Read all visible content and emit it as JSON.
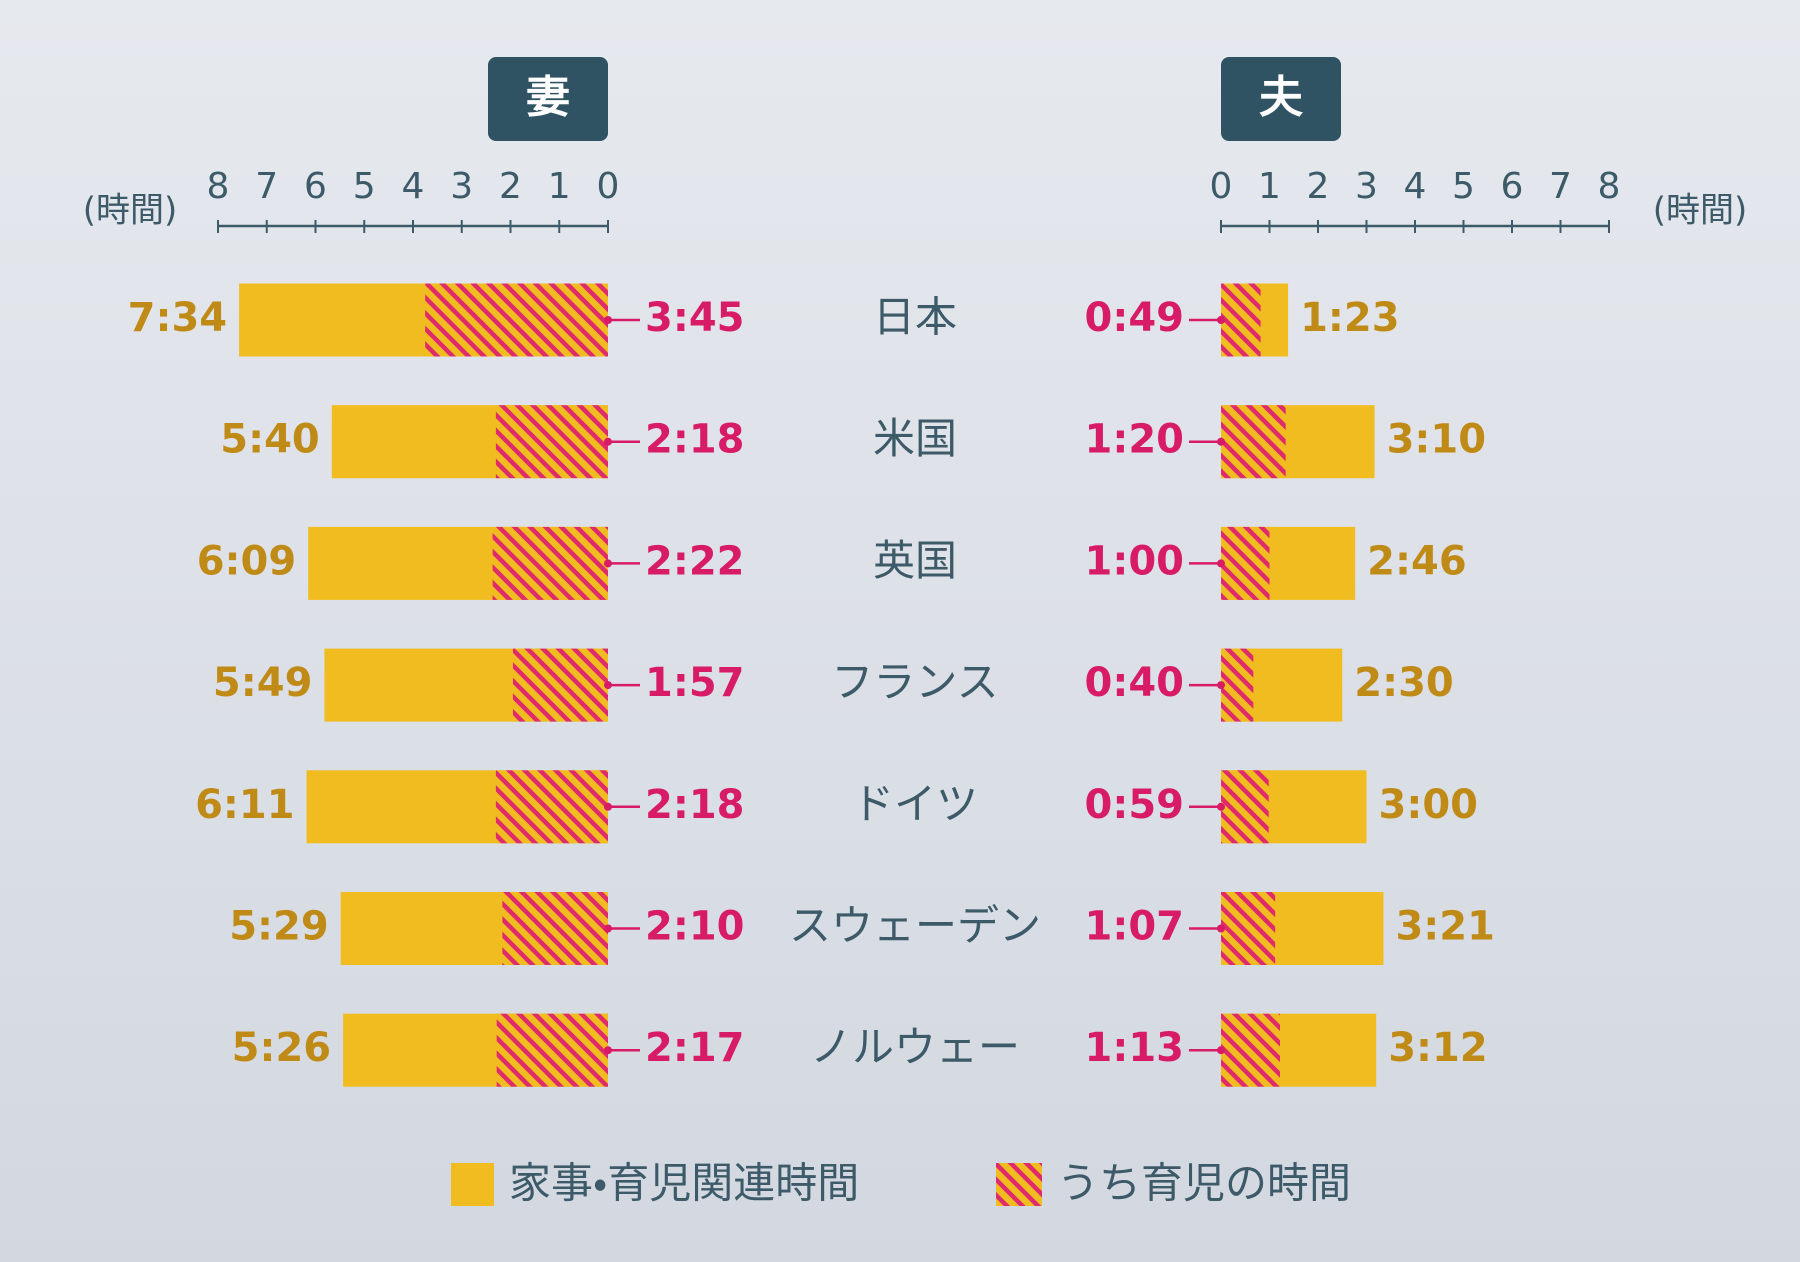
{
  "chart_data": {
    "type": "butterfly",
    "categories": [
      "日本",
      "米国",
      "英国",
      "フランス",
      "ドイツ",
      "スウェーデン",
      "ノルウェー"
    ],
    "panels": [
      {
        "title": "妻",
        "xlabel": "(時間)",
        "direction": "left",
        "xlim": [
          0,
          8
        ],
        "xticks": [
          0,
          1,
          2,
          3,
          4,
          5,
          6,
          7,
          8
        ],
        "series": [
          {
            "name": "家事・育児関連時間",
            "color": "#f1bc1f",
            "label_color": "#c08a17",
            "values": [
              7.5667,
              5.6667,
              6.15,
              5.8167,
              6.1833,
              5.4833,
              5.4333
            ],
            "value_labels": [
              "7:34",
              "5:40",
              "6:09",
              "5:49",
              "6:11",
              "5:29",
              "5:26"
            ]
          },
          {
            "name": "うち育児の時間",
            "color": "#df2a6c",
            "label_color": "#d81b66",
            "values": [
              3.75,
              2.3,
              2.3667,
              1.95,
              2.3,
              2.1667,
              2.2833
            ],
            "value_labels": [
              "3:45",
              "2:18",
              "2:22",
              "1:57",
              "2:18",
              "2:10",
              "2:17"
            ]
          }
        ]
      },
      {
        "title": "夫",
        "xlabel": "(時間)",
        "direction": "right",
        "xlim": [
          0,
          8
        ],
        "xticks": [
          0,
          1,
          2,
          3,
          4,
          5,
          6,
          7,
          8
        ],
        "series": [
          {
            "name": "家事・育児関連時間",
            "color": "#f1bc1f",
            "label_color": "#c08a17",
            "values": [
              1.3833,
              3.1667,
              2.7667,
              2.5,
              3,
              3.35,
              3.2
            ],
            "value_labels": [
              "1:23",
              "3:10",
              "2:46",
              "2:30",
              "3:00",
              "3:21",
              "3:12"
            ]
          },
          {
            "name": "うち育児の時間",
            "color": "#df2a6c",
            "label_color": "#d81b66",
            "values": [
              0.8167,
              1.3333,
              1,
              0.6667,
              0.9833,
              1.1167,
              1.2167
            ],
            "value_labels": [
              "0:49",
              "1:20",
              "1:00",
              "0:40",
              "0:59",
              "1:07",
              "1:13"
            ]
          }
        ]
      }
    ]
  }
}
